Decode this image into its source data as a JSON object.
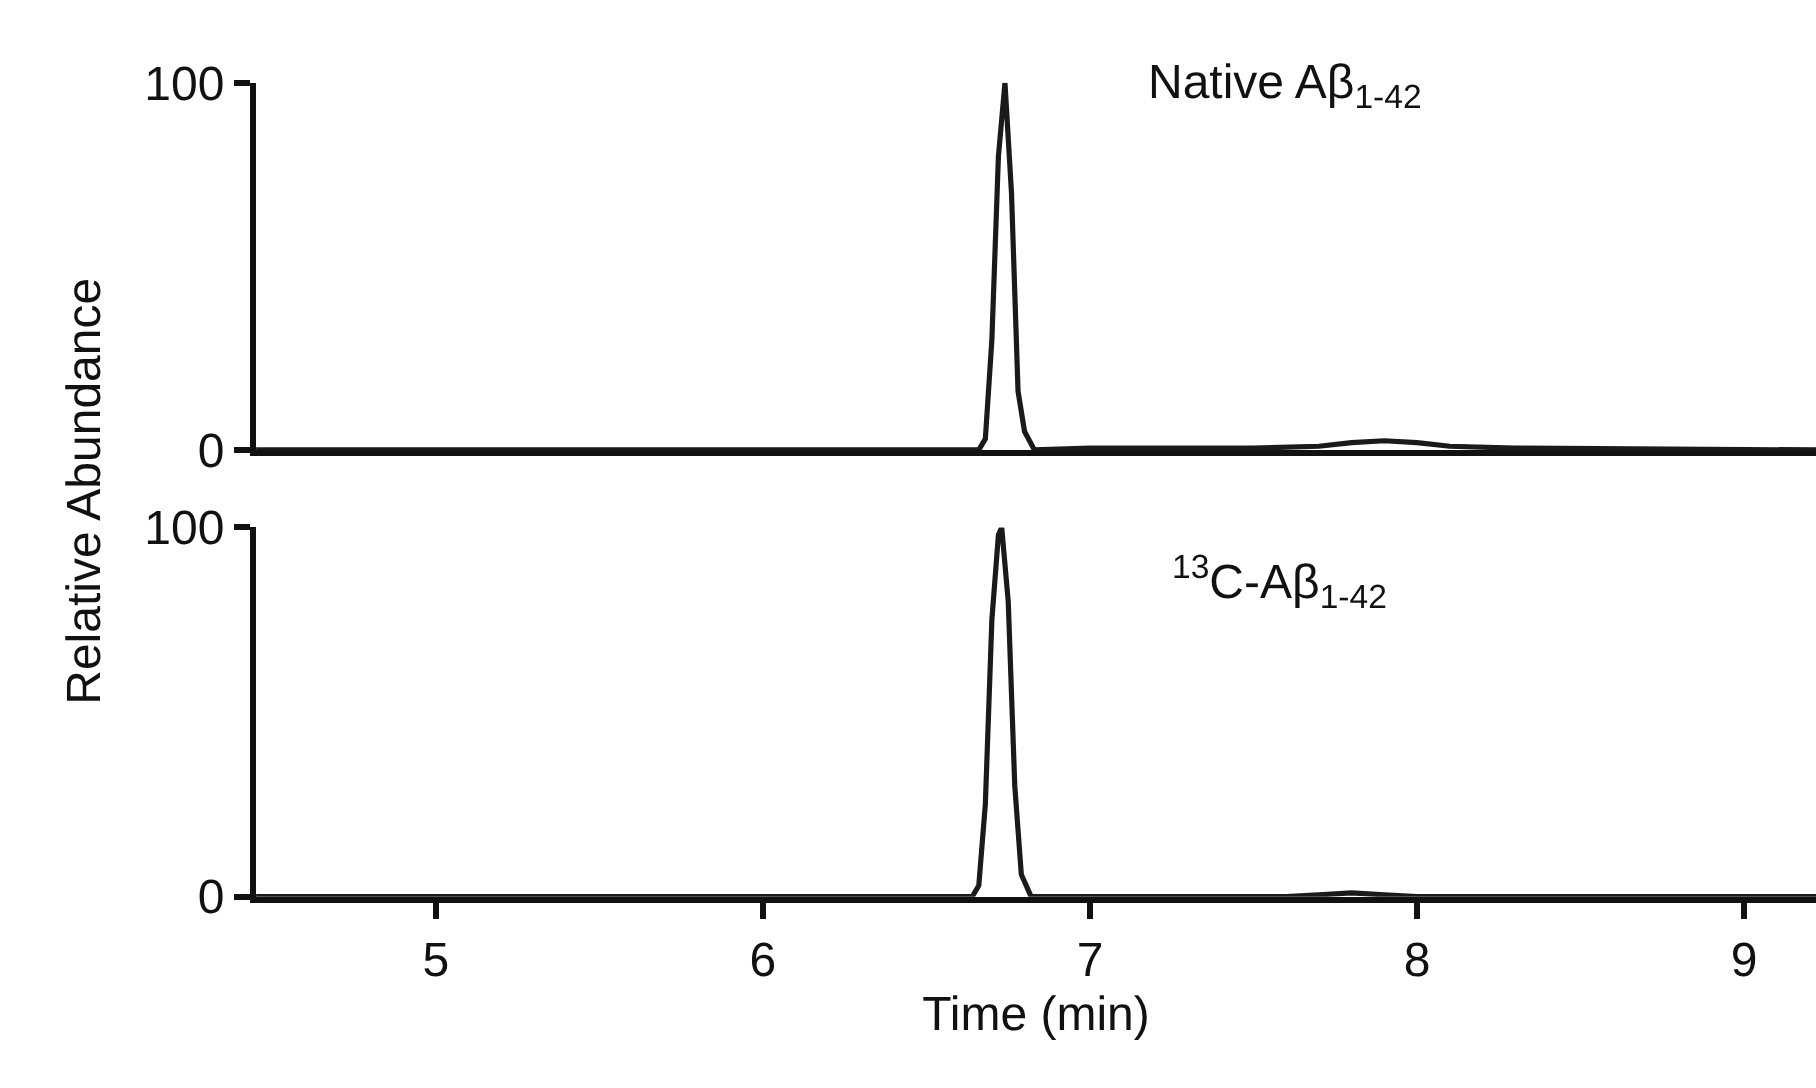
{
  "chart_data": [
    {
      "type": "line",
      "ylabel": "Relative Abundance",
      "xlim": [
        4.45,
        9.22
      ],
      "ylim": [
        0,
        100
      ],
      "yticks": [
        0,
        100
      ],
      "tick_labels": "y",
      "marker": "none",
      "line_style": "solid",
      "annotations": [
        "Native Aβ$_{1-42}$"
      ],
      "series": [
        {
          "color": "#1a1a1a",
          "x": [
            4.45,
            6.66,
            6.68,
            6.7,
            6.72,
            6.74,
            6.76,
            6.78,
            6.8,
            6.83,
            7.0,
            7.5,
            7.7,
            7.8,
            7.9,
            8.0,
            8.1,
            8.3,
            9.22
          ],
          "values": [
            0,
            0,
            3,
            30,
            80,
            100,
            70,
            16,
            5,
            0,
            0.5,
            0.5,
            1,
            2,
            2.5,
            2,
            1,
            0.5,
            0
          ]
        }
      ]
    },
    {
      "type": "line",
      "xlabel": "Time (min)",
      "xlim": [
        4.45,
        9.22
      ],
      "xticks": [
        5,
        6,
        7,
        8,
        9
      ],
      "ylim": [
        0,
        100
      ],
      "yticks": [
        0,
        100
      ],
      "marker": "none",
      "line_style": "solid",
      "annotations": [
        "$^{13}$C-Aβ$_{1-42}$"
      ],
      "series": [
        {
          "color": "#1a1a1a",
          "x": [
            4.45,
            6.64,
            6.66,
            6.68,
            6.7,
            6.72,
            6.73,
            6.75,
            6.77,
            6.79,
            6.82,
            7.6,
            7.7,
            7.8,
            7.9,
            8.0,
            9.22
          ],
          "values": [
            0,
            0,
            3,
            25,
            75,
            98,
            100,
            80,
            30,
            6,
            0,
            0,
            0.5,
            1,
            0.5,
            0,
            0
          ]
        }
      ]
    }
  ]
}
